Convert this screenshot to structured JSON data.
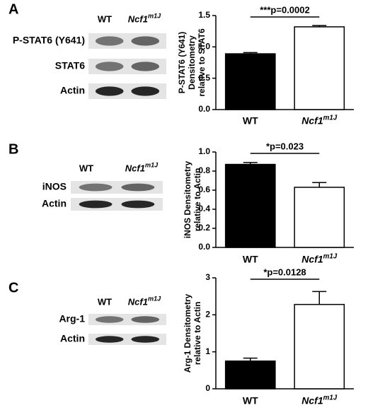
{
  "chart_data": [
    {
      "type": "bar",
      "panel": "A",
      "blot_rows": [
        "P-STAT6 (Y641)",
        "STAT6",
        "Actin"
      ],
      "categories": [
        "WT",
        "Ncf1"
      ],
      "category_superscripts": [
        null,
        "m1J"
      ],
      "values": [
        0.89,
        1.32
      ],
      "errors": [
        0.02,
        0.02
      ],
      "colors": [
        "#000000",
        "#ffffff"
      ],
      "y_label": [
        "P-STAT6 (Y641)",
        "Densitometry",
        "relative to STAT6"
      ],
      "annotation": "***p=0.0002",
      "ylim": [
        0,
        1.5
      ],
      "yticks": [
        {
          "value": 0,
          "label": "0.0"
        },
        {
          "value": 0.5,
          "label": "0.5"
        },
        {
          "value": 1,
          "label": "1.0"
        },
        {
          "value": 1.5,
          "label": "1.5"
        }
      ]
    },
    {
      "type": "bar",
      "panel": "B",
      "blot_rows": [
        "iNOS",
        "Actin"
      ],
      "categories": [
        "WT",
        "Ncf1"
      ],
      "category_superscripts": [
        null,
        "m1J"
      ],
      "values": [
        0.87,
        0.63
      ],
      "errors": [
        0.02,
        0.05
      ],
      "colors": [
        "#000000",
        "#ffffff"
      ],
      "y_label": [
        "iNOS Densitometry",
        "relative to Actin"
      ],
      "annotation": "*p=0.023",
      "ylim": [
        0,
        1.0
      ],
      "yticks": [
        {
          "value": 0,
          "label": "0.0"
        },
        {
          "value": 0.2,
          "label": "0.2"
        },
        {
          "value": 0.4,
          "label": "0.4"
        },
        {
          "value": 0.6,
          "label": "0.6"
        },
        {
          "value": 0.8,
          "label": "0.8"
        },
        {
          "value": 1,
          "label": "1.0"
        }
      ]
    },
    {
      "type": "bar",
      "panel": "C",
      "blot_rows": [
        "Arg-1",
        "Actin"
      ],
      "categories": [
        "WT",
        "Ncf1"
      ],
      "category_superscripts": [
        null,
        "m1J"
      ],
      "values": [
        0.75,
        2.28
      ],
      "errors": [
        0.08,
        0.35
      ],
      "colors": [
        "#000000",
        "#ffffff"
      ],
      "y_label": [
        "Arg-1 Densitometry",
        "relative to Actin"
      ],
      "annotation": "*p=0.0128",
      "ylim": [
        0,
        3
      ],
      "yticks": [
        0,
        1,
        2,
        3
      ]
    }
  ]
}
